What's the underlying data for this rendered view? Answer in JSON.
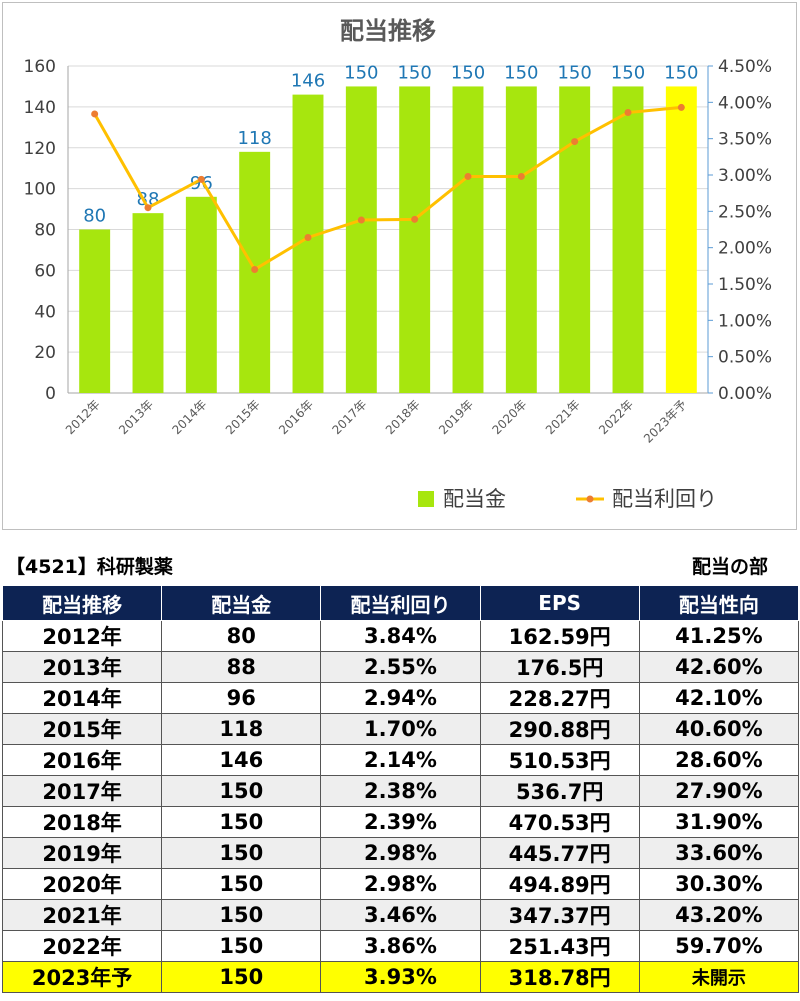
{
  "chart_data": {
    "type": "bar+line",
    "title": "配当推移",
    "categories": [
      "2012年",
      "2013年",
      "2014年",
      "2015年",
      "2016年",
      "2017年",
      "2018年",
      "2019年",
      "2020年",
      "2021年",
      "2022年",
      "2023年予"
    ],
    "series": [
      {
        "name": "配当金",
        "type": "bar",
        "axis": "left",
        "color": "#a7e60e",
        "highlight_last_color": "#ffff00",
        "values": [
          80,
          88,
          96,
          118,
          146,
          150,
          150,
          150,
          150,
          150,
          150,
          150
        ]
      },
      {
        "name": "配当利回り",
        "type": "line",
        "axis": "right",
        "color": "#ffc000",
        "marker_color": "#ed7d31",
        "values": [
          3.84,
          2.55,
          2.94,
          1.7,
          2.14,
          2.38,
          2.39,
          2.98,
          2.98,
          3.46,
          3.86,
          3.93
        ]
      }
    ],
    "y_left": {
      "min": 0,
      "max": 160,
      "step": 20
    },
    "y_right": {
      "min": 0,
      "max": 4.5,
      "step": 0.5,
      "format": "percent"
    },
    "legend": "bottom-right",
    "label_color": "#1f77b4"
  },
  "header": {
    "company": "【4521】科研製薬",
    "section": "配当の部"
  },
  "table": {
    "columns": [
      "配当推移",
      "配当金",
      "配当利回り",
      "EPS",
      "配当性向"
    ],
    "rows": [
      [
        "2012年",
        "80",
        "3.84%",
        "162.59円",
        "41.25%"
      ],
      [
        "2013年",
        "88",
        "2.55%",
        "176.5円",
        "42.60%"
      ],
      [
        "2014年",
        "96",
        "2.94%",
        "228.27円",
        "42.10%"
      ],
      [
        "2015年",
        "118",
        "1.70%",
        "290.88円",
        "40.60%"
      ],
      [
        "2016年",
        "146",
        "2.14%",
        "510.53円",
        "28.60%"
      ],
      [
        "2017年",
        "150",
        "2.38%",
        "536.7円",
        "27.90%"
      ],
      [
        "2018年",
        "150",
        "2.39%",
        "470.53円",
        "31.90%"
      ],
      [
        "2019年",
        "150",
        "2.98%",
        "445.77円",
        "33.60%"
      ],
      [
        "2020年",
        "150",
        "2.98%",
        "494.89円",
        "30.30%"
      ],
      [
        "2021年",
        "150",
        "3.46%",
        "347.37円",
        "43.20%"
      ],
      [
        "2022年",
        "150",
        "3.86%",
        "251.43円",
        "59.70%"
      ],
      [
        "2023年予",
        "150",
        "3.93%",
        "318.78円",
        "未開示"
      ]
    ]
  }
}
